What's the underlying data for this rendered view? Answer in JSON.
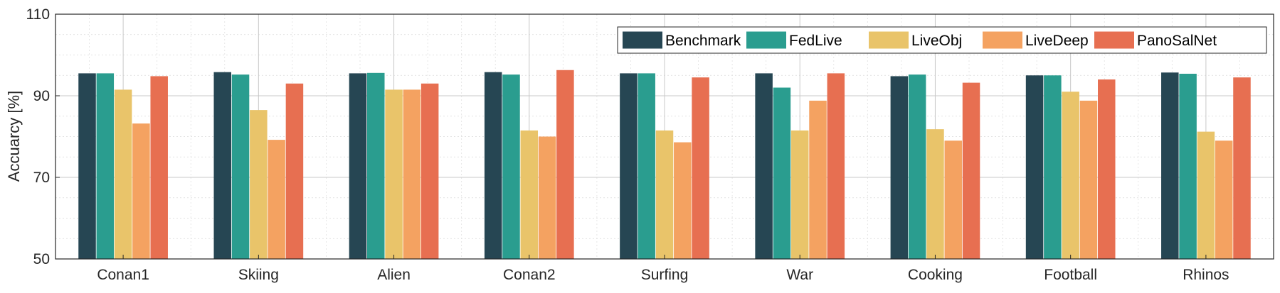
{
  "chart_data": {
    "type": "bar",
    "title": "",
    "xlabel": "",
    "ylabel": "Accuarcy [%]",
    "ylim": [
      50,
      110
    ],
    "yticks": [
      50,
      70,
      90,
      110
    ],
    "grid": true,
    "minor_grid": true,
    "legend_position": "top-right",
    "categories": [
      "Conan1",
      "Skiing",
      "Alien",
      "Conan2",
      "Surfing",
      "War",
      "Cooking",
      "Football",
      "Rhinos"
    ],
    "series": [
      {
        "name": "Benchmark",
        "color": "#264653",
        "values": [
          95.5,
          95.8,
          95.5,
          95.8,
          95.5,
          95.5,
          94.8,
          95.0,
          95.7
        ]
      },
      {
        "name": "FedLive",
        "color": "#2a9d8f",
        "values": [
          95.5,
          95.2,
          95.6,
          95.2,
          95.5,
          92.0,
          95.2,
          95.0,
          95.4
        ]
      },
      {
        "name": "LiveObj",
        "color": "#e9c46a",
        "values": [
          91.5,
          86.5,
          91.5,
          81.5,
          81.5,
          81.5,
          81.8,
          91.0,
          81.2
        ]
      },
      {
        "name": "LiveDeep",
        "color": "#f4a261",
        "values": [
          83.2,
          79.2,
          91.5,
          80.0,
          78.6,
          88.8,
          79.0,
          88.8,
          79.0
        ]
      },
      {
        "name": "PanoSalNet",
        "color": "#e76f51",
        "values": [
          94.8,
          93.0,
          93.0,
          96.3,
          94.5,
          95.5,
          93.2,
          94.0,
          94.5
        ]
      }
    ]
  }
}
